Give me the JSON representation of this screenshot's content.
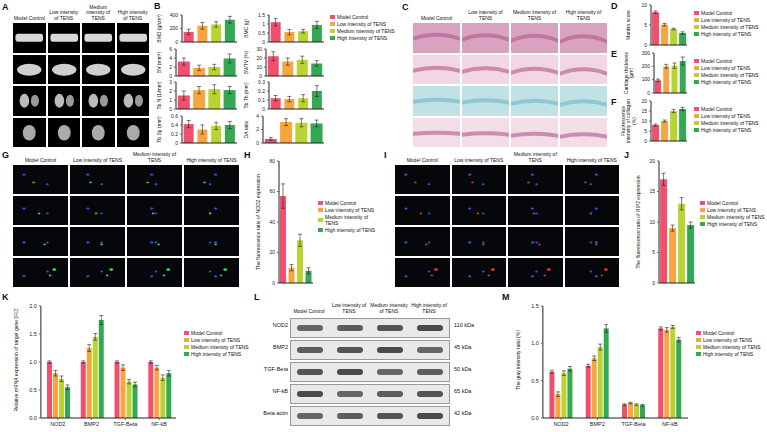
{
  "chart_data": [
    {
      "type": "bar",
      "panel": "B",
      "ylabel": "BMD (g/cm³)",
      "categories": [
        "Model Control",
        "Low intensity of TENS",
        "Medium intensity of TENS",
        "High intensity of TENS"
      ],
      "colors": [
        "#f0506e",
        "#f7a541",
        "#b9d432",
        "#35a853"
      ],
      "values": [
        150,
        240,
        260,
        330
      ],
      "errors": [
        40,
        50,
        40,
        50
      ],
      "ylim": [
        0,
        400
      ],
      "yticks": [
        0,
        200,
        400
      ],
      "tick_labels": "y",
      "legend": "right"
    },
    {
      "type": "bar",
      "panel": "B",
      "ylabel": "BMC (g)",
      "categories": [
        "Model Control",
        "Low intensity of TENS",
        "Medium intensity of TENS",
        "High intensity of TENS"
      ],
      "colors": [
        "#f0506e",
        "#f7a541",
        "#b9d432",
        "#35a853"
      ],
      "values": [
        1.1,
        0.55,
        0.6,
        0.95
      ],
      "errors": [
        0.2,
        0.15,
        0.1,
        0.2
      ],
      "ylim": [
        0,
        1.5
      ],
      "yticks": [
        0,
        0.5,
        1,
        1.5
      ],
      "tick_labels": "y"
    },
    {
      "type": "bar",
      "panel": "B",
      "ylabel": "BV (mm³)",
      "categories": [
        "Model Control",
        "Low intensity of TENS",
        "Medium intensity of TENS",
        "High intensity of TENS"
      ],
      "colors": [
        "#f0506e",
        "#f7a541",
        "#b9d432",
        "#35a853"
      ],
      "values": [
        3.2,
        1.8,
        2.0,
        3.9
      ],
      "errors": [
        0.8,
        0.6,
        0.6,
        1.0
      ],
      "ylim": [
        0,
        6
      ],
      "yticks": [
        0,
        2,
        4,
        6
      ],
      "tick_labels": "y"
    },
    {
      "type": "bar",
      "panel": "B",
      "ylabel": "BV/TV (%)",
      "categories": [
        "Model Control",
        "Low intensity of TENS",
        "Medium intensity of TENS",
        "High intensity of TENS"
      ],
      "colors": [
        "#f0506e",
        "#f7a541",
        "#b9d432",
        "#35a853"
      ],
      "values": [
        22,
        16,
        18,
        14
      ],
      "errors": [
        5,
        4,
        4,
        3
      ],
      "ylim": [
        0,
        30
      ],
      "yticks": [
        0,
        10,
        20,
        30
      ],
      "tick_labels": "y"
    },
    {
      "type": "bar",
      "panel": "B",
      "ylabel": "Tb.N (1/mm)",
      "categories": [
        "Model Control",
        "Low intensity of TENS",
        "Medium intensity of TENS",
        "High intensity of TENS"
      ],
      "colors": [
        "#f0506e",
        "#f7a541",
        "#b9d432",
        "#35a853"
      ],
      "values": [
        1.5,
        2.1,
        2.2,
        2.1
      ],
      "errors": [
        0.5,
        0.4,
        0.5,
        0.4
      ],
      "ylim": [
        0,
        3
      ],
      "yticks": [
        0,
        1,
        2,
        3
      ],
      "tick_labels": "y"
    },
    {
      "type": "bar",
      "panel": "B",
      "ylabel": "Tb.Th (mm)",
      "categories": [
        "Model Control",
        "Low intensity of TENS",
        "Medium intensity of TENS",
        "High intensity of TENS"
      ],
      "colors": [
        "#f0506e",
        "#f7a541",
        "#b9d432",
        "#35a853"
      ],
      "values": [
        0.12,
        0.11,
        0.12,
        0.2
      ],
      "errors": [
        0.03,
        0.03,
        0.04,
        0.06
      ],
      "ylim": [
        0,
        0.3
      ],
      "yticks": [
        0,
        0.1,
        0.2,
        0.3
      ],
      "tick_labels": "y"
    },
    {
      "type": "bar",
      "panel": "B",
      "ylabel": "Tb.Sp (mm)",
      "categories": [
        "Model Control",
        "Low intensity of TENS",
        "Medium intensity of TENS",
        "High intensity of TENS"
      ],
      "colors": [
        "#f0506e",
        "#f7a541",
        "#b9d432",
        "#35a853"
      ],
      "values": [
        0.42,
        0.3,
        0.38,
        0.4
      ],
      "errors": [
        0.08,
        0.1,
        0.08,
        0.08
      ],
      "ylim": [
        0,
        0.6
      ],
      "yticks": [
        0,
        0.2,
        0.4,
        0.6
      ],
      "tick_labels": "y"
    },
    {
      "type": "bar",
      "panel": "B",
      "ylabel": "DA ratio",
      "categories": [
        "Model Control",
        "Low intensity of TENS",
        "Medium intensity of TENS",
        "High intensity of TENS"
      ],
      "colors": [
        "#f0506e",
        "#f7a541",
        "#b9d432",
        "#35a853"
      ],
      "values": [
        0.6,
        3.1,
        3.0,
        2.9
      ],
      "errors": [
        0.2,
        0.5,
        0.6,
        0.5
      ],
      "ylim": [
        0,
        4
      ],
      "yticks": [
        0,
        2,
        4
      ],
      "tick_labels": "y"
    },
    {
      "type": "bar",
      "panel": "D",
      "ylabel": "Mankin score",
      "categories": [
        "Model Control",
        "Low intensity of TENS",
        "Medium intensity of TENS",
        "High intensity of TENS"
      ],
      "colors": [
        "#f0506e",
        "#f7a541",
        "#b9d432",
        "#35a853"
      ],
      "values": [
        8.2,
        5.1,
        4.0,
        3.0
      ],
      "errors": [
        0.3,
        0.3,
        0.2,
        0.3
      ],
      "ylim": [
        0,
        10
      ],
      "yticks": [
        0,
        5,
        10
      ],
      "tick_labels": "y",
      "legend": "right"
    },
    {
      "type": "bar",
      "panel": "E",
      "ylabel": "Cartilage thickness (μm)",
      "categories": [
        "Model Control",
        "Low intensity of TENS",
        "Medium intensity of TENS",
        "High intensity of TENS"
      ],
      "colors": [
        "#f0506e",
        "#f7a541",
        "#b9d432",
        "#35a853"
      ],
      "values": [
        95,
        200,
        205,
        240
      ],
      "errors": [
        10,
        15,
        20,
        30
      ],
      "ylim": [
        0,
        300
      ],
      "yticks": [
        0,
        100,
        200,
        300
      ],
      "tick_labels": "y",
      "legend": "right"
    },
    {
      "type": "bar",
      "panel": "F",
      "ylabel": "Fluorescence intensity of collagen (%)",
      "categories": [
        "Model Control",
        "Low intensity of TENS",
        "Medium intensity of TENS",
        "High intensity of TENS"
      ],
      "colors": [
        "#f0506e",
        "#f7a541",
        "#b9d432",
        "#35a853"
      ],
      "values": [
        8,
        10,
        15,
        16
      ],
      "errors": [
        0.5,
        0.5,
        0.8,
        0.8
      ],
      "ylim": [
        0,
        20
      ],
      "yticks": [
        0,
        5,
        10,
        15,
        20
      ],
      "tick_labels": "y",
      "legend": "right"
    },
    {
      "type": "bar",
      "panel": "H",
      "ylabel": "The fluorescence ratio of NOD2 expression",
      "categories": [
        "Model Control",
        "Low intensity of TENS",
        "Medium intensity of TENS",
        "High intensity of TENS"
      ],
      "colors": [
        "#f0506e",
        "#f7a541",
        "#b9d432",
        "#35a853"
      ],
      "values": [
        57,
        10,
        28,
        8
      ],
      "errors": [
        8,
        2,
        4,
        2
      ],
      "ylim": [
        0,
        80
      ],
      "yticks": [
        0,
        20,
        40,
        60,
        80
      ],
      "tick_labels": "y",
      "legend": "right"
    },
    {
      "type": "bar",
      "panel": "J",
      "ylabel": "The fluorescence ratio of RIP2 expression",
      "categories": [
        "Model Control",
        "Low intensity of TENS",
        "Medium intensity of TENS",
        "High intensity of TENS"
      ],
      "colors": [
        "#f0506e",
        "#f7a541",
        "#b9d432",
        "#35a853"
      ],
      "values": [
        17,
        9,
        13,
        9.5
      ],
      "errors": [
        1,
        0.5,
        1,
        0.5
      ],
      "ylim": [
        0,
        20
      ],
      "yticks": [
        0,
        5,
        10,
        15,
        20
      ],
      "tick_labels": "y",
      "legend": "right"
    },
    {
      "type": "grouped_bar",
      "panel": "K",
      "ylabel": "Relative mRNA expression of target gene (FC)",
      "categories": [
        "NOD2",
        "BMP2",
        "TGF-Beta",
        "NF-kB"
      ],
      "series": [
        {
          "name": "Model Control",
          "color": "#f0506e",
          "values": [
            1.0,
            1.0,
            1.0,
            1.0
          ],
          "errors": [
            0.02,
            0.02,
            0.02,
            0.02
          ]
        },
        {
          "name": "Low intensity of TENS",
          "color": "#f7a541",
          "values": [
            0.8,
            1.25,
            0.9,
            0.9
          ],
          "errors": [
            0.05,
            0.06,
            0.05,
            0.04
          ]
        },
        {
          "name": "Medium intensity of TENS",
          "color": "#b9d432",
          "values": [
            0.7,
            1.45,
            0.65,
            0.72
          ],
          "errors": [
            0.05,
            0.06,
            0.04,
            0.05
          ]
        },
        {
          "name": "High intensity of TENS",
          "color": "#35a853",
          "values": [
            0.55,
            1.75,
            0.6,
            0.8
          ],
          "errors": [
            0.04,
            0.08,
            0.04,
            0.05
          ]
        }
      ],
      "ylim": [
        0,
        2
      ],
      "yticks": [
        {
          "value": 0,
          "label": "0.0"
        },
        0.5,
        {
          "value": 1,
          "label": "1.0"
        },
        1.5,
        {
          "value": 2,
          "label": "2.0"
        }
      ],
      "legend": "right"
    },
    {
      "type": "grouped_bar",
      "panel": "M",
      "ylabel": "The gray intensity ratio (%)",
      "categories": [
        "NOD2",
        "BMP2",
        "TGF-Beta",
        "NF-kB"
      ],
      "series": [
        {
          "name": "Model Control",
          "color": "#f0506e",
          "values": [
            0.62,
            0.7,
            0.18,
            1.2
          ],
          "errors": [
            0.02,
            0.02,
            0.01,
            0.02
          ]
        },
        {
          "name": "Low intensity of TENS",
          "color": "#f7a541",
          "values": [
            0.32,
            0.8,
            0.2,
            1.18
          ],
          "errors": [
            0.03,
            0.03,
            0.01,
            0.03
          ]
        },
        {
          "name": "Medium intensity of TENS",
          "color": "#b9d432",
          "values": [
            0.6,
            0.95,
            0.18,
            1.22
          ],
          "errors": [
            0.03,
            0.04,
            0.01,
            0.02
          ]
        },
        {
          "name": "High intensity of TENS",
          "color": "#35a853",
          "values": [
            0.66,
            1.2,
            0.17,
            1.05
          ],
          "errors": [
            0.03,
            0.05,
            0.01,
            0.03
          ]
        }
      ],
      "ylim": [
        0,
        1.5
      ],
      "yticks": [
        {
          "value": 0,
          "label": "0.0"
        },
        0.5,
        {
          "value": 1,
          "label": "1.0"
        },
        1.5
      ],
      "legend": "right"
    }
  ],
  "images": [
    {
      "panel": "A",
      "columns": [
        "Model Control",
        "Low intensity of TENS",
        "Medium intensity of TENS",
        "High intensity of TENS"
      ]
    },
    {
      "panel": "C",
      "columns": [
        "Model Control",
        "Low intensity of TENS",
        "Medium intensity of TENS",
        "High intensity of TENS"
      ]
    },
    {
      "panel": "G",
      "columns": [
        "Model Control",
        "Low intensity of TENS",
        "Medium intensity of TENS",
        "High intensity of TENS"
      ]
    },
    {
      "panel": "I",
      "columns": [
        "Model Control",
        "Low intensity of TENS",
        "Medium intensity of TENS",
        "High intensity of TENS"
      ]
    },
    {
      "panel": "L",
      "columns": [
        "Model Control",
        "Low intensity of TENS",
        "Medium intensity of TENS",
        "High intensity of TENS"
      ],
      "rows": [
        "NOD2",
        "BMP2",
        "TGF-Beta",
        "NF-kB",
        "Beta-actin"
      ],
      "sizes": [
        "110 kDa",
        "45 kDa",
        "50 kDa",
        "65 kDa",
        "42 kDa"
      ]
    }
  ]
}
